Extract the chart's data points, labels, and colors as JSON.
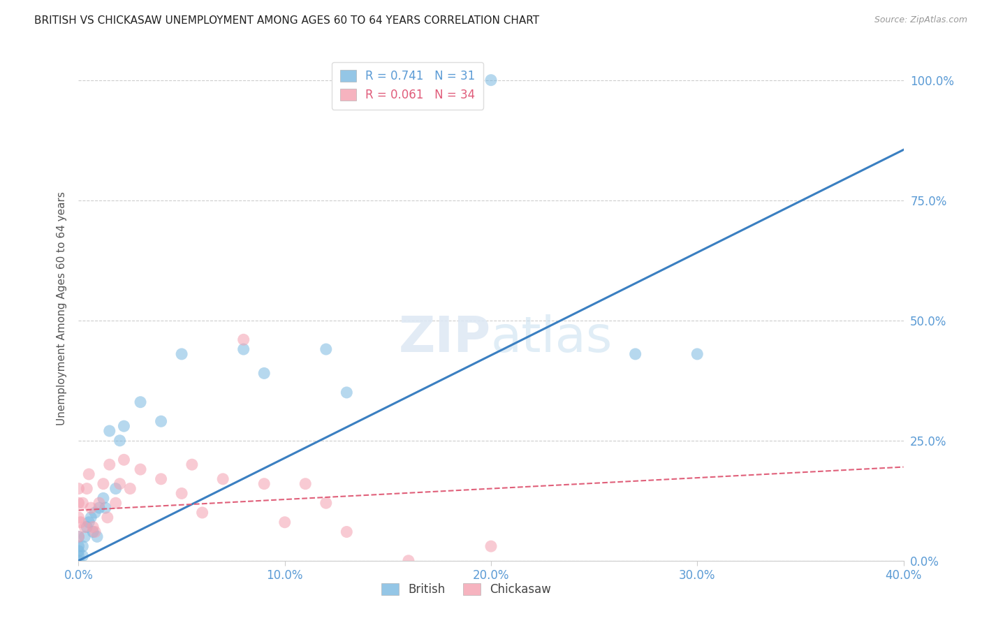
{
  "title": "BRITISH VS CHICKASAW UNEMPLOYMENT AMONG AGES 60 TO 64 YEARS CORRELATION CHART",
  "source": "Source: ZipAtlas.com",
  "ylabel": "Unemployment Among Ages 60 to 64 years",
  "xlim": [
    0.0,
    0.4
  ],
  "ylim": [
    0.0,
    1.05
  ],
  "xtick_labels": [
    "0.0%",
    "10.0%",
    "20.0%",
    "30.0%",
    "40.0%"
  ],
  "xtick_vals": [
    0.0,
    0.1,
    0.2,
    0.3,
    0.4
  ],
  "ytick_labels": [
    "0.0%",
    "25.0%",
    "50.0%",
    "75.0%",
    "100.0%"
  ],
  "ytick_vals": [
    0.0,
    0.25,
    0.5,
    0.75,
    1.0
  ],
  "british_color": "#7ab8e0",
  "chickasaw_color": "#f4a0b0",
  "british_line_color": "#3a7fc1",
  "chickasaw_line_color": "#e0607a",
  "british_R": 0.741,
  "british_N": 31,
  "chickasaw_R": 0.061,
  "chickasaw_N": 34,
  "british_line_x0": 0.0,
  "british_line_y0": 0.0,
  "british_line_x1": 0.4,
  "british_line_y1": 0.855,
  "chickasaw_line_x0": 0.0,
  "chickasaw_line_y0": 0.105,
  "chickasaw_line_x1": 0.4,
  "chickasaw_line_y1": 0.195,
  "british_x": [
    0.0,
    0.0,
    0.0,
    0.0,
    0.0,
    0.002,
    0.002,
    0.003,
    0.004,
    0.005,
    0.006,
    0.007,
    0.008,
    0.009,
    0.01,
    0.012,
    0.013,
    0.015,
    0.018,
    0.02,
    0.022,
    0.03,
    0.04,
    0.05,
    0.08,
    0.09,
    0.12,
    0.13,
    0.2,
    0.27,
    0.3
  ],
  "british_y": [
    0.0,
    0.01,
    0.02,
    0.03,
    0.05,
    0.01,
    0.03,
    0.05,
    0.07,
    0.08,
    0.09,
    0.06,
    0.1,
    0.05,
    0.11,
    0.13,
    0.11,
    0.27,
    0.15,
    0.25,
    0.28,
    0.33,
    0.29,
    0.43,
    0.44,
    0.39,
    0.44,
    0.35,
    1.0,
    0.43,
    0.43
  ],
  "chickasaw_x": [
    0.0,
    0.0,
    0.0,
    0.0,
    0.001,
    0.002,
    0.003,
    0.004,
    0.005,
    0.006,
    0.007,
    0.008,
    0.01,
    0.012,
    0.014,
    0.015,
    0.018,
    0.02,
    0.022,
    0.025,
    0.03,
    0.04,
    0.05,
    0.055,
    0.06,
    0.07,
    0.08,
    0.09,
    0.1,
    0.11,
    0.12,
    0.13,
    0.16,
    0.2
  ],
  "chickasaw_y": [
    0.05,
    0.09,
    0.12,
    0.15,
    0.08,
    0.12,
    0.07,
    0.15,
    0.18,
    0.11,
    0.07,
    0.06,
    0.12,
    0.16,
    0.09,
    0.2,
    0.12,
    0.16,
    0.21,
    0.15,
    0.19,
    0.17,
    0.14,
    0.2,
    0.1,
    0.17,
    0.46,
    0.16,
    0.08,
    0.16,
    0.12,
    0.06,
    0.0,
    0.03
  ]
}
